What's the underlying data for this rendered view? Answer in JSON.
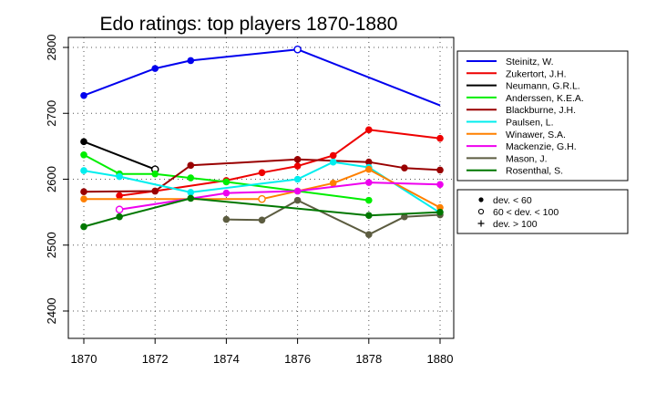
{
  "chart_data": {
    "type": "line",
    "title": "Edo ratings: top players 1870-1880",
    "xlabel": "",
    "ylabel": "",
    "xlim": [
      1870,
      1880
    ],
    "ylim": [
      2355,
      2815
    ],
    "x_ticks": [
      1870,
      1872,
      1874,
      1876,
      1878,
      1880
    ],
    "y_ticks": [
      2400,
      2500,
      2600,
      2700,
      2800
    ],
    "grid": true,
    "legend_position": "right",
    "series": [
      {
        "name": "Steinitz, W.",
        "color": "#0000ee",
        "points": [
          [
            1870,
            2727,
            "filled"
          ],
          [
            1872,
            2768,
            "filled"
          ],
          [
            1873,
            2780,
            "filled"
          ],
          [
            1876,
            2797,
            "open"
          ],
          [
            1880,
            2712,
            "none"
          ]
        ]
      },
      {
        "name": "Zukertort, J.H.",
        "color": "#ee0000",
        "points": [
          [
            1871,
            2575,
            "filled"
          ],
          [
            1872,
            2582,
            "filled"
          ],
          [
            1874,
            2598,
            "filled"
          ],
          [
            1875,
            2610,
            "filled"
          ],
          [
            1876,
            2620,
            "filled"
          ],
          [
            1877,
            2636,
            "filled"
          ],
          [
            1878,
            2675,
            "filled"
          ],
          [
            1880,
            2662,
            "filled"
          ]
        ]
      },
      {
        "name": "Neumann, G.R.L.",
        "color": "#000000",
        "points": [
          [
            1870,
            2657,
            "filled"
          ],
          [
            1872,
            2615,
            "open"
          ]
        ]
      },
      {
        "name": "Anderssen, K.E.A.",
        "color": "#00ee00",
        "points": [
          [
            1870,
            2637,
            "filled"
          ],
          [
            1871,
            2608,
            "filled"
          ],
          [
            1872,
            2608,
            "filled"
          ],
          [
            1873,
            2602,
            "filled"
          ],
          [
            1874,
            2596,
            "filled"
          ],
          [
            1876,
            2582,
            "filled"
          ],
          [
            1878,
            2568,
            "filled"
          ]
        ]
      },
      {
        "name": "Blackburne, J.H.",
        "color": "#990000",
        "points": [
          [
            1870,
            2581,
            "filled"
          ],
          [
            1872,
            2582,
            "filled"
          ],
          [
            1873,
            2621,
            "filled"
          ],
          [
            1876,
            2630,
            "filled"
          ],
          [
            1878,
            2626,
            "filled"
          ],
          [
            1879,
            2617,
            "filled"
          ],
          [
            1880,
            2614,
            "filled"
          ]
        ]
      },
      {
        "name": "Paulsen, L.",
        "color": "#00eeee",
        "points": [
          [
            1870,
            2613,
            "filled"
          ],
          [
            1871,
            2604,
            "filled"
          ],
          [
            1873,
            2580,
            "filled"
          ],
          [
            1876,
            2600,
            "filled"
          ],
          [
            1877,
            2626,
            "filled"
          ],
          [
            1878,
            2618,
            "filled"
          ],
          [
            1880,
            2549,
            "none"
          ]
        ]
      },
      {
        "name": "Winawer, S.A.",
        "color": "#ff8000",
        "points": [
          [
            1870,
            2570,
            "filled"
          ],
          [
            1875,
            2570,
            "open"
          ],
          [
            1877,
            2594,
            "filled"
          ],
          [
            1878,
            2615,
            "filled"
          ],
          [
            1880,
            2557,
            "filled"
          ]
        ]
      },
      {
        "name": "Mackenzie, G.H.",
        "color": "#ee00ee",
        "points": [
          [
            1871,
            2554,
            "open"
          ],
          [
            1874,
            2579,
            "filled"
          ],
          [
            1876,
            2582,
            "filled"
          ],
          [
            1878,
            2595,
            "filled"
          ],
          [
            1880,
            2592,
            "filled"
          ]
        ]
      },
      {
        "name": "Mason, J.",
        "color": "#5c5c40",
        "points": [
          [
            1874,
            2539,
            "filled"
          ],
          [
            1875,
            2538,
            "filled"
          ],
          [
            1876,
            2568,
            "filled"
          ],
          [
            1878,
            2516,
            "filled"
          ],
          [
            1879,
            2543,
            "filled"
          ],
          [
            1880,
            2546,
            "filled"
          ]
        ]
      },
      {
        "name": "Rosenthal, S.",
        "color": "#007700",
        "points": [
          [
            1870,
            2528,
            "filled"
          ],
          [
            1871,
            2543,
            "filled"
          ],
          [
            1873,
            2571,
            "filled"
          ],
          [
            1878,
            2545,
            "filled"
          ],
          [
            1880,
            2550,
            "filled"
          ]
        ]
      }
    ],
    "marker_legend": [
      {
        "symbol": "filled",
        "label": "dev. < 60"
      },
      {
        "symbol": "open",
        "label": "60 < dev. < 100"
      },
      {
        "symbol": "plus",
        "label": "dev. > 100"
      }
    ]
  }
}
